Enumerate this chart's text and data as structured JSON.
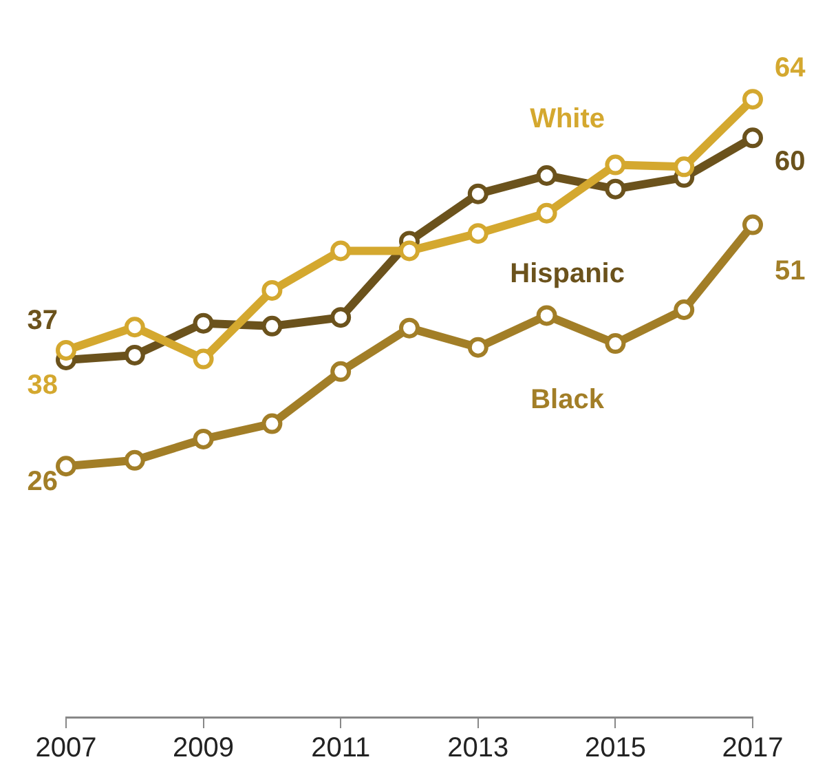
{
  "chart_data": {
    "type": "line",
    "x": [
      2007,
      2008,
      2009,
      2010,
      2011,
      2012,
      2013,
      2014,
      2015,
      2016,
      2017
    ],
    "xlim": [
      2007,
      2017
    ],
    "xticks": [
      2007,
      2009,
      2011,
      2013,
      2015,
      2017
    ],
    "tick_labels": "x",
    "grid": false,
    "legend": false,
    "marker": "circle",
    "series": [
      {
        "name": "White",
        "color": "#d4a82f",
        "values": [
          38,
          40.4,
          37.1,
          44.2,
          48.3,
          48.3,
          50.1,
          52.2,
          57.2,
          57,
          64
        ],
        "value_labels": [
          "38",
          null,
          null,
          null,
          null,
          null,
          null,
          null,
          null,
          null,
          "64"
        ]
      },
      {
        "name": "Hispanic",
        "color": "#6b521c",
        "values": [
          37,
          37.5,
          40.8,
          40.5,
          41.4,
          49.3,
          54.2,
          56.1,
          54.7,
          55.9,
          60
        ],
        "value_labels": [
          "37",
          null,
          null,
          null,
          null,
          null,
          null,
          null,
          null,
          null,
          "60"
        ]
      },
      {
        "name": "Black",
        "color": "#a27e27",
        "values": [
          26,
          26.6,
          28.8,
          30.4,
          35.8,
          40.3,
          38.3,
          41.6,
          38.7,
          42.2,
          51
        ],
        "value_labels": [
          "26",
          null,
          null,
          null,
          null,
          null,
          null,
          null,
          null,
          null,
          "51"
        ]
      }
    ]
  }
}
